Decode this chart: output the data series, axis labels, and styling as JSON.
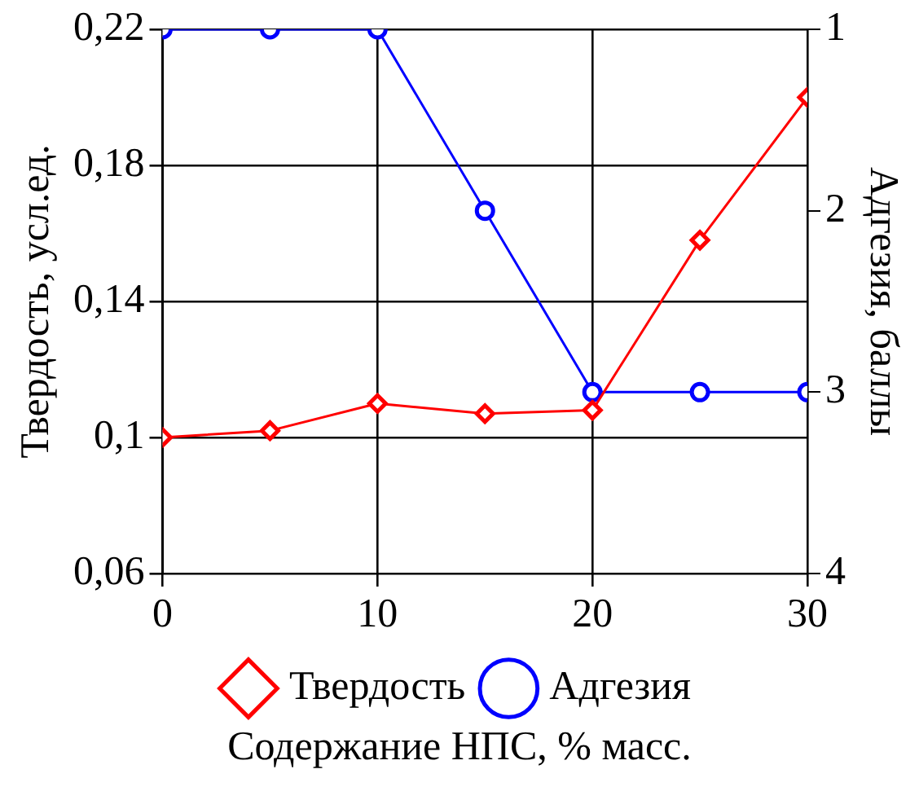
{
  "chart_data": {
    "type": "line",
    "xlabel": "Содержание НПС, % масс.",
    "ylabel": "Твердость, усл.ед.",
    "y2label": "Адгезия, баллы",
    "x": [
      0,
      5,
      10,
      15,
      20,
      25,
      30
    ],
    "series": [
      {
        "name": "Твердость",
        "color": "#ff0000",
        "marker": "diamond",
        "values": [
          0.1,
          0.102,
          0.11,
          0.107,
          0.108,
          0.158,
          0.2
        ]
      },
      {
        "name": "Адгезия",
        "color": "#0000ff",
        "marker": "circle",
        "axis": "y2",
        "values": [
          1,
          1,
          1,
          2,
          3,
          3,
          3
        ]
      }
    ],
    "xlim": [
      0,
      30
    ],
    "xticks": [
      0,
      10,
      20,
      30
    ],
    "ylim": [
      0.06,
      0.22
    ],
    "yticks": [
      {
        "value": 0.06,
        "label": "0,06"
      },
      {
        "value": 0.1,
        "label": "0,1"
      },
      {
        "value": 0.14,
        "label": "0,14"
      },
      {
        "value": 0.18,
        "label": "0,18"
      },
      {
        "value": 0.22,
        "label": "0,22"
      }
    ],
    "y2lim": [
      4,
      1
    ],
    "y2ticks": [
      1,
      2,
      3,
      4
    ],
    "grid": true,
    "legend": "bottom"
  }
}
